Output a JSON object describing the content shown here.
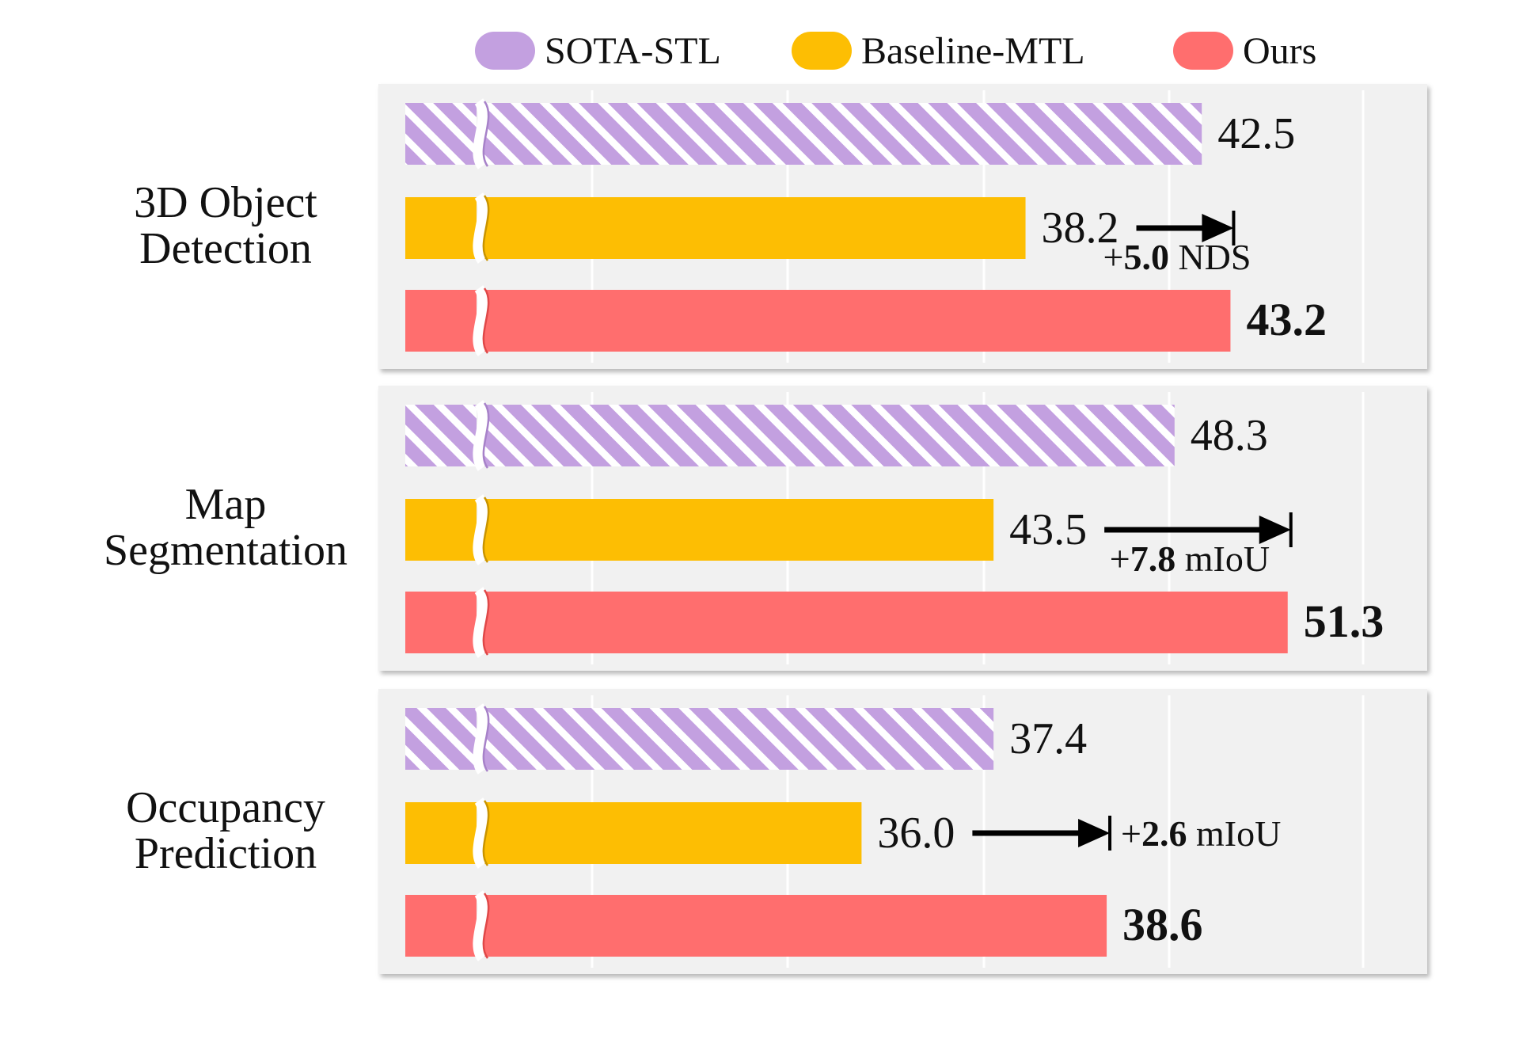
{
  "colors": {
    "sota": "#c3a0e0",
    "baseline": "#fdbe03",
    "ours": "#ff6e6e",
    "panel": "#f1f1f1",
    "grid": "#ffffff",
    "arrow": "#000000"
  },
  "chart_data": {
    "type": "bar",
    "orientation": "horizontal",
    "axis_break": true,
    "grid": true,
    "legend_position": "top",
    "legend": [
      {
        "key": "sota",
        "label": "SOTA-STL"
      },
      {
        "key": "baseline",
        "label": "Baseline-MTL"
      },
      {
        "key": "ours",
        "label": "Ours"
      }
    ],
    "groups": [
      {
        "task_lines": [
          "3D Object",
          "Detection"
        ],
        "xlim": [
          25,
          48
        ],
        "values": {
          "sota": 42.5,
          "baseline": 38.2,
          "ours": 43.2
        },
        "labels": {
          "sota": "42.5",
          "baseline": "38.2",
          "ours": "43.2"
        },
        "gain": {
          "value": "5.0",
          "unit": "NDS",
          "inline": false
        }
      },
      {
        "task_lines": [
          "Map",
          "Segmentation"
        ],
        "xlim": [
          30,
          55
        ],
        "values": {
          "sota": 48.3,
          "baseline": 43.5,
          "ours": 51.3
        },
        "labels": {
          "sota": "48.3",
          "baseline": "43.5",
          "ours": "51.3"
        },
        "gain": {
          "value": "7.8",
          "unit": "mIoU",
          "inline": false
        }
      },
      {
        "task_lines": [
          "Occupancy",
          "Prediction"
        ],
        "xlim": [
          32,
          42
        ],
        "values": {
          "sota": 37.4,
          "baseline": 36.0,
          "ours": 38.6
        },
        "labels": {
          "sota": "37.4",
          "baseline": "36.0",
          "ours": "38.6"
        },
        "gain": {
          "value": "2.6",
          "unit": "mIoU",
          "inline": true
        }
      }
    ]
  }
}
